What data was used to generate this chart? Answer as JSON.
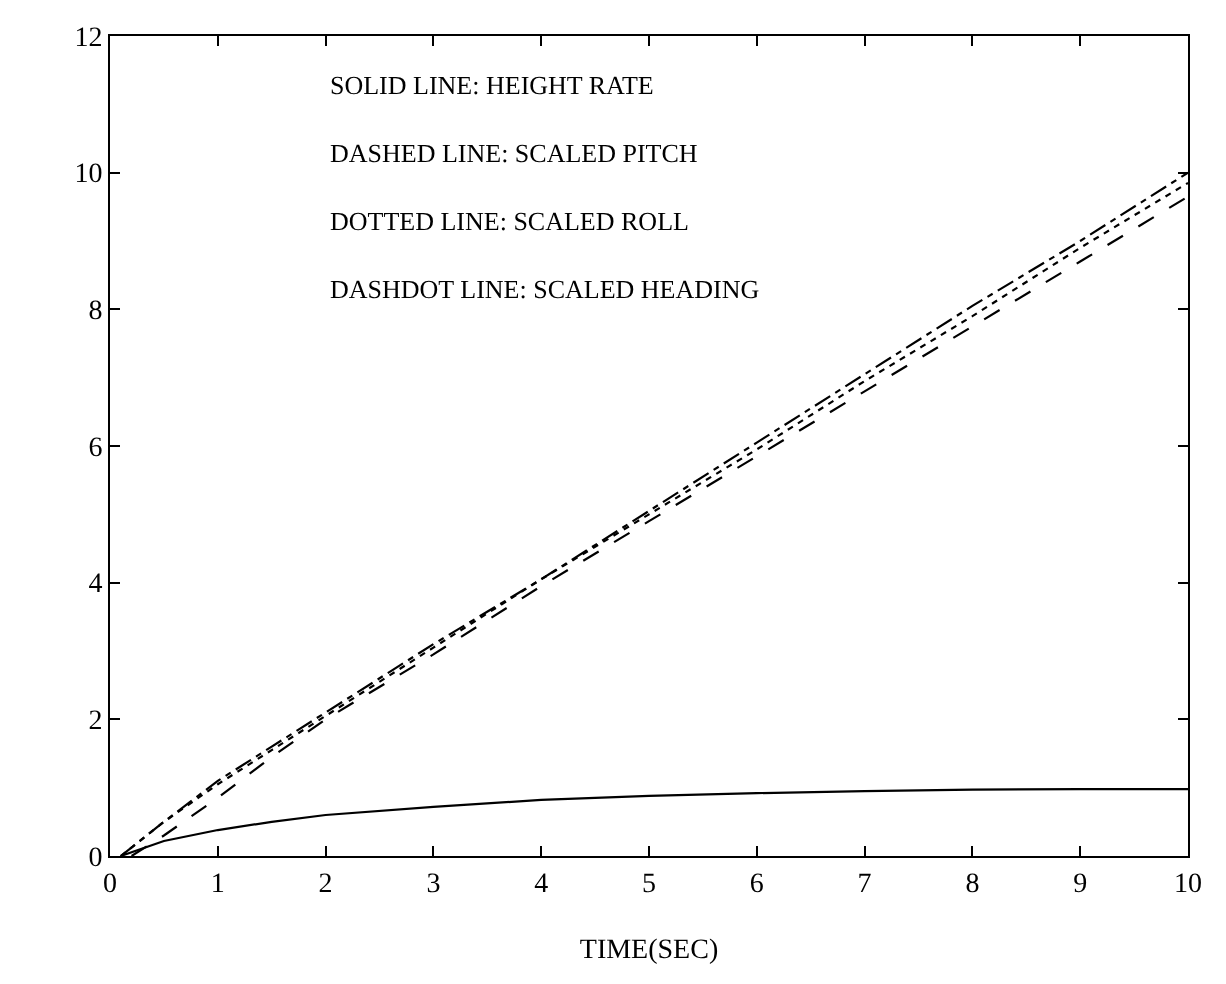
{
  "chart_data": {
    "type": "line",
    "xlabel": "TIME(SEC)",
    "xlim": [
      0,
      10
    ],
    "xticks": [
      0,
      1,
      2,
      3,
      4,
      5,
      6,
      7,
      8,
      9,
      10
    ],
    "ylim": [
      0,
      12
    ],
    "yticks": [
      0,
      2,
      4,
      6,
      8,
      10,
      12
    ],
    "marker": "none",
    "annotations": [
      "SOLID LINE: HEIGHT RATE",
      "DASHED LINE: SCALED PITCH",
      "DOTTED LINE: SCALED ROLL",
      "DASHDOT LINE: SCALED HEADING"
    ],
    "series": [
      {
        "color": "#000000",
        "line_style": "solid",
        "x": [
          0.1,
          0.5,
          1,
          1.5,
          2,
          3,
          4,
          5,
          6,
          7,
          8,
          9,
          10
        ],
        "values": [
          0,
          0.22,
          0.38,
          0.5,
          0.6,
          0.72,
          0.82,
          0.88,
          0.92,
          0.95,
          0.97,
          0.98,
          0.98
        ]
      },
      {
        "color": "#000000",
        "line_style": "dashed",
        "x": [
          0.2,
          0.5,
          1,
          1.5,
          2,
          3,
          4,
          5,
          6,
          7,
          8,
          9,
          10
        ],
        "values": [
          0,
          0.3,
          0.85,
          1.45,
          2.0,
          2.95,
          3.95,
          4.9,
          5.85,
          6.8,
          7.75,
          8.7,
          9.65
        ]
      },
      {
        "color": "#000000",
        "line_style": "dotted",
        "x": [
          0.1,
          0.5,
          1,
          1.5,
          2,
          3,
          4,
          5,
          6,
          7,
          8,
          9,
          10
        ],
        "values": [
          0,
          0.5,
          1.05,
          1.55,
          2.05,
          3.05,
          4.05,
          5.0,
          5.95,
          6.95,
          7.9,
          8.9,
          9.85
        ]
      },
      {
        "color": "#000000",
        "line_style": "dashdot",
        "x": [
          0.1,
          0.5,
          1,
          1.5,
          2,
          3,
          4,
          5,
          6,
          7,
          8,
          9,
          10
        ],
        "values": [
          0,
          0.5,
          1.1,
          1.6,
          2.1,
          3.1,
          4.05,
          5.05,
          6.05,
          7.05,
          8.05,
          9.0,
          10.0
        ]
      }
    ]
  }
}
